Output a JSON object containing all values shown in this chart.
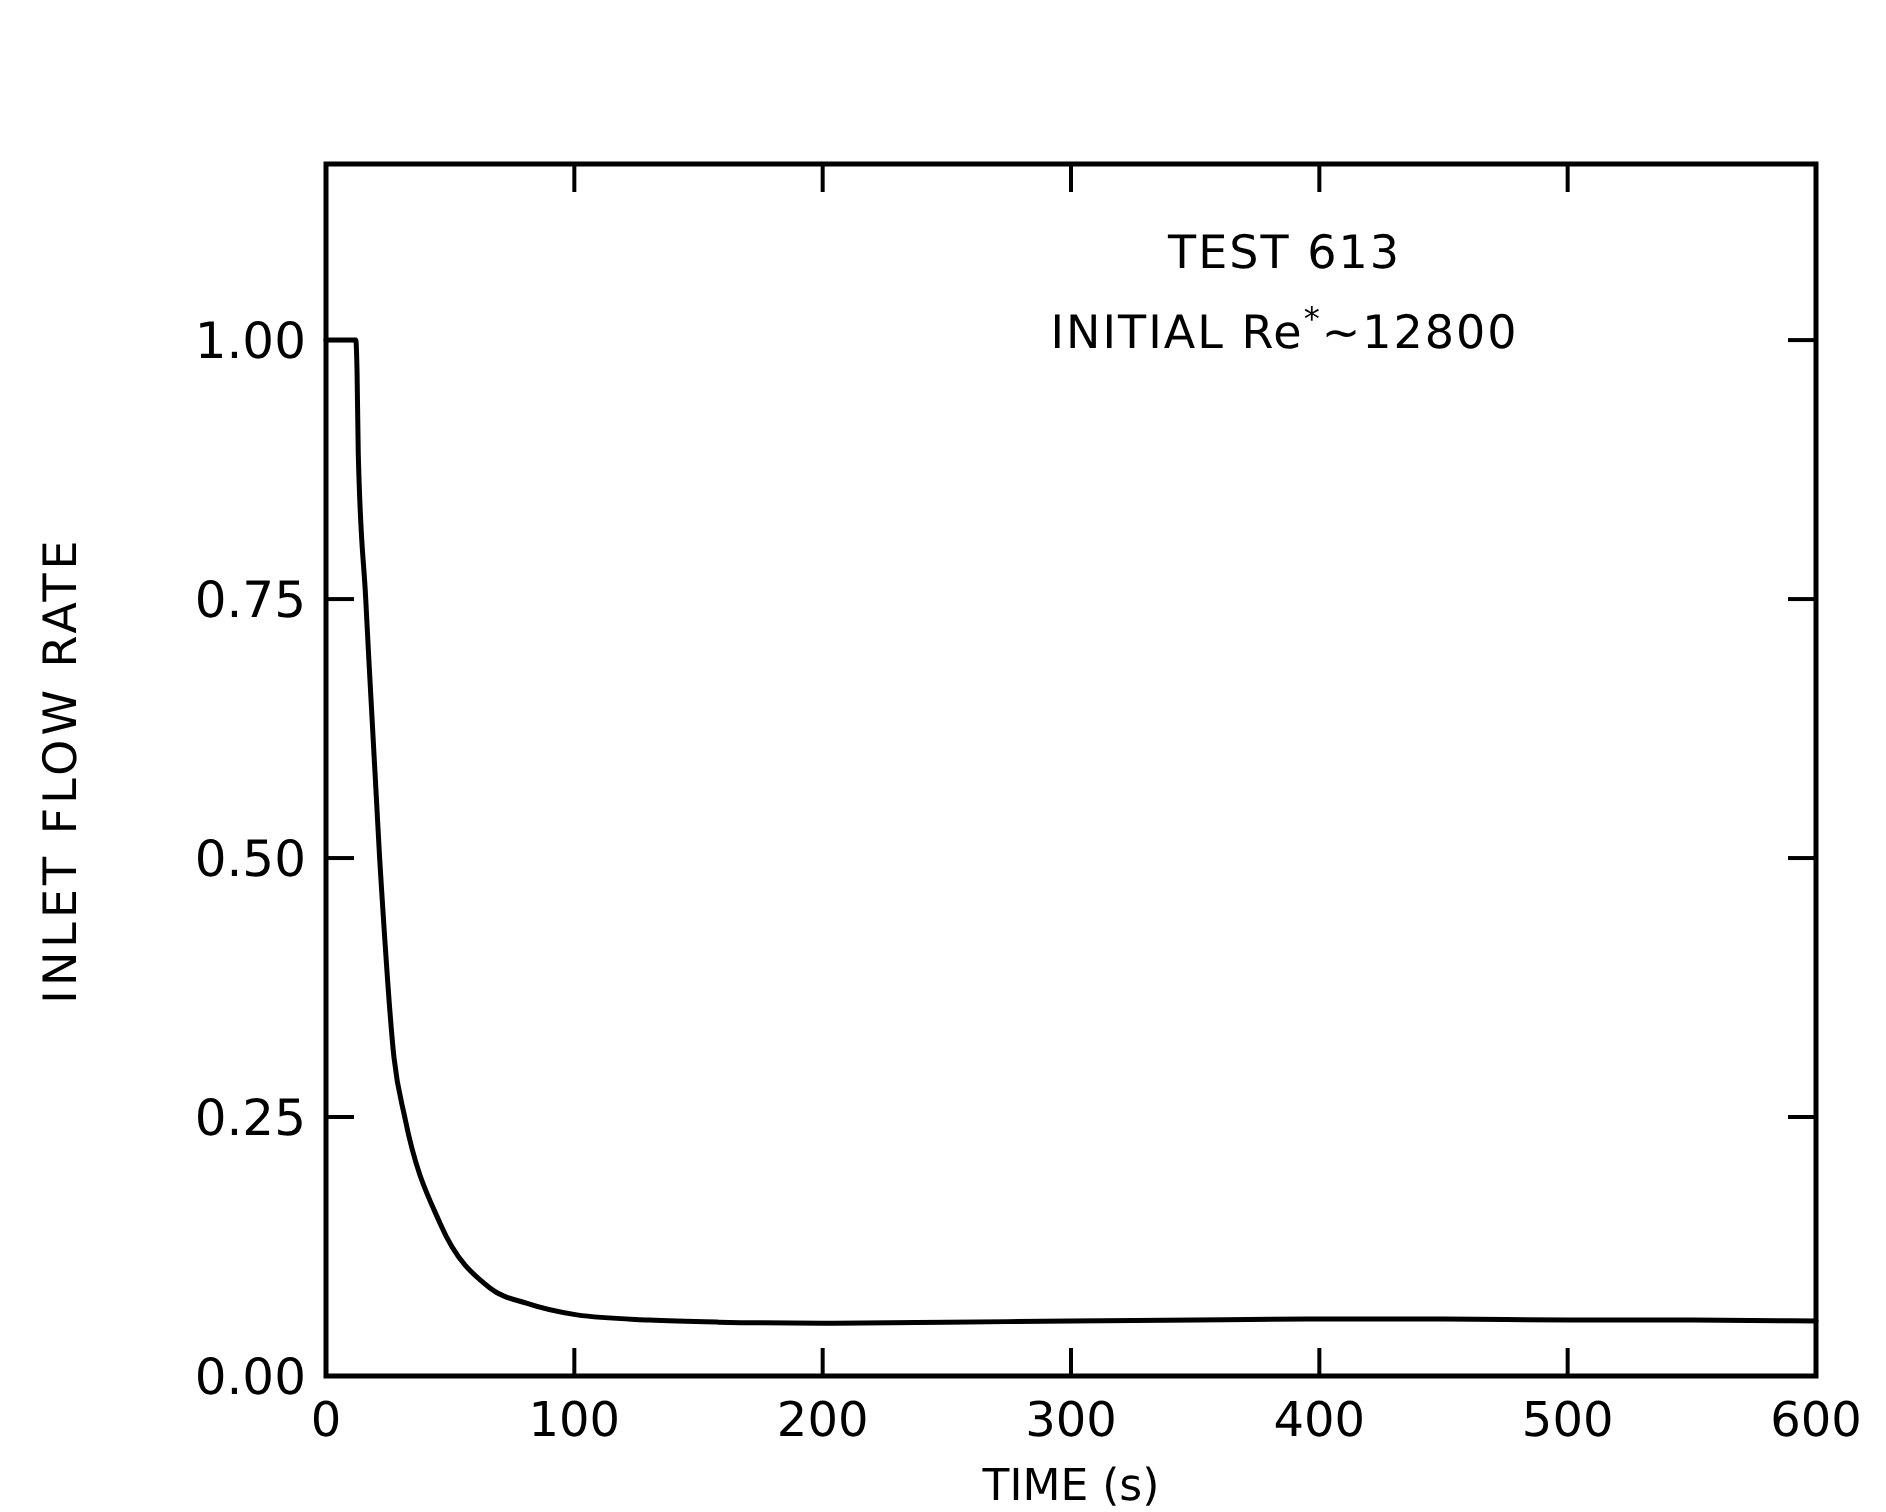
{
  "chart_data": {
    "type": "line",
    "xlabel": "TIME (s)",
    "ylabel": "INLET FLOW RATE",
    "annotations": [
      "TEST 613",
      "INITIAL Re$^{*}$~12800"
    ],
    "xlim": [
      0,
      600
    ],
    "xticks": [
      0,
      100,
      200,
      300,
      400,
      500,
      600
    ],
    "ylim": [
      0,
      1.17
    ],
    "yticks": [
      {
        "value": 0,
        "label": "0.00"
      },
      {
        "value": 0.25,
        "label": "0.25"
      },
      {
        "value": 0.5,
        "label": "0.50"
      },
      {
        "value": 0.75,
        "label": "0.75"
      },
      {
        "value": 1,
        "label": "1.00"
      }
    ],
    "grid": false,
    "marker": "none",
    "line_style": "solid",
    "series": [
      {
        "color": "#000000",
        "x": [
          0,
          12,
          12.5,
          13,
          16,
          21.6,
          27.4,
          31.7,
          46,
          66,
          81,
          101,
          130,
          158,
          200,
          250,
          300,
          350,
          400,
          450,
          500,
          550,
          600
        ],
        "values": [
          1,
          1,
          0.97,
          0.89,
          0.75,
          0.5,
          0.307,
          0.25,
          0.147,
          0.085,
          0.07,
          0.059,
          0.054,
          0.052,
          0.051,
          0.052,
          0.053,
          0.054,
          0.055,
          0.055,
          0.054,
          0.054,
          0.053
        ]
      }
    ]
  }
}
